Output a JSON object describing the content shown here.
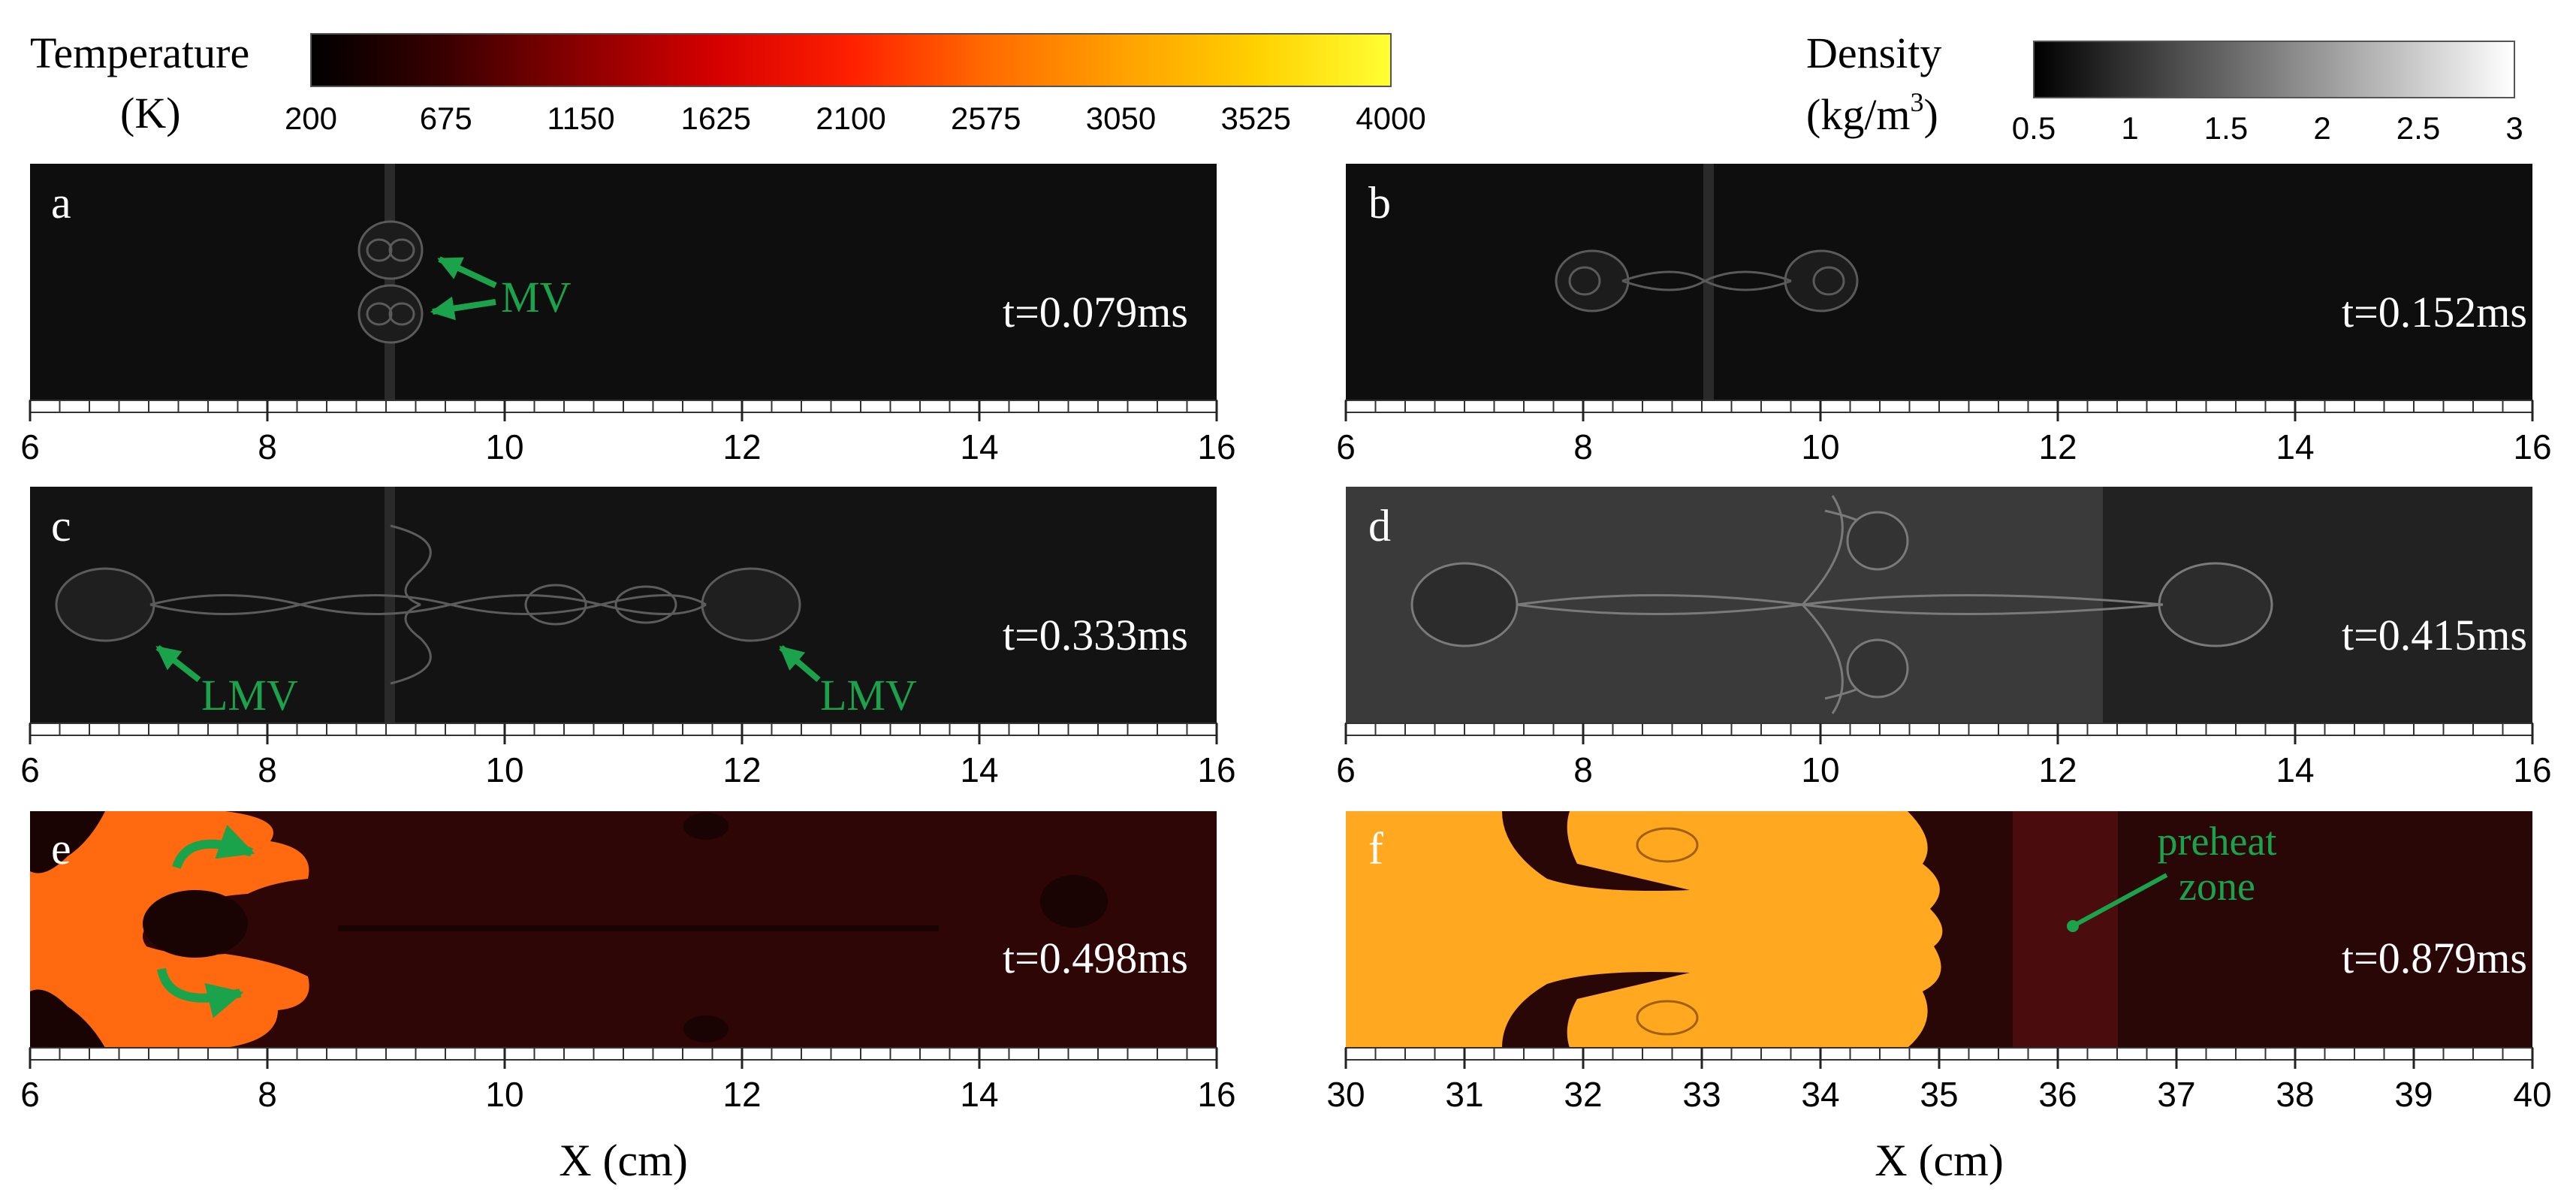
{
  "legends": {
    "temperature": {
      "title_line1": "Temperature",
      "title_line2": "(K)",
      "ticks": [
        "200",
        "675",
        "1150",
        "1625",
        "2100",
        "2575",
        "3050",
        "3525",
        "4000"
      ],
      "colors": [
        "#000000",
        "#3a0000",
        "#8b0000",
        "#d60000",
        "#ff2000",
        "#ff6a00",
        "#ffa000",
        "#ffd000",
        "#ffff33"
      ]
    },
    "density": {
      "title_line1": "Density",
      "title_line2_prefix": "(kg/m",
      "title_line2_sup": "3",
      "title_line2_suffix": ")",
      "ticks": [
        "0.5",
        "1",
        "1.5",
        "2",
        "2.5",
        "3"
      ],
      "colors": [
        "#000000",
        "#ffffff"
      ]
    }
  },
  "panels": [
    {
      "id": "a",
      "label": "a",
      "time": "t=0.079ms",
      "type": "density",
      "axis_min": 6,
      "axis_max": 16,
      "axis_labels": [
        "6",
        "8",
        "10",
        "12",
        "14",
        "16"
      ],
      "annotations": [
        {
          "text": "MV"
        }
      ]
    },
    {
      "id": "b",
      "label": "b",
      "time": "t=0.152ms",
      "type": "density",
      "axis_min": 6,
      "axis_max": 16,
      "axis_labels": [
        "6",
        "8",
        "10",
        "12",
        "14",
        "16"
      ],
      "annotations": []
    },
    {
      "id": "c",
      "label": "c",
      "time": "t=0.333ms",
      "type": "density",
      "axis_min": 6,
      "axis_max": 16,
      "axis_labels": [
        "6",
        "8",
        "10",
        "12",
        "14",
        "16"
      ],
      "annotations": [
        {
          "text": "LMV"
        },
        {
          "text": "LMV"
        }
      ]
    },
    {
      "id": "d",
      "label": "d",
      "time": "t=0.415ms",
      "type": "density",
      "axis_min": 6,
      "axis_max": 16,
      "axis_labels": [
        "6",
        "8",
        "10",
        "12",
        "14",
        "16"
      ],
      "annotations": []
    },
    {
      "id": "e",
      "label": "e",
      "time": "t=0.498ms",
      "type": "temperature",
      "axis_min": 6,
      "axis_max": 16,
      "axis_labels": [
        "6",
        "8",
        "10",
        "12",
        "14",
        "16"
      ],
      "annotations": []
    },
    {
      "id": "f",
      "label": "f",
      "time": "t=0.879ms",
      "type": "temperature",
      "axis_min": 30,
      "axis_max": 40,
      "axis_labels": [
        "30",
        "31",
        "32",
        "33",
        "34",
        "35",
        "36",
        "37",
        "38",
        "39",
        "40"
      ],
      "annotations": [
        {
          "text_line1": "preheat",
          "text_line2": "zone"
        }
      ]
    }
  ],
  "x_axis_title": "X (cm)",
  "annotation_color": "#1aa34a"
}
